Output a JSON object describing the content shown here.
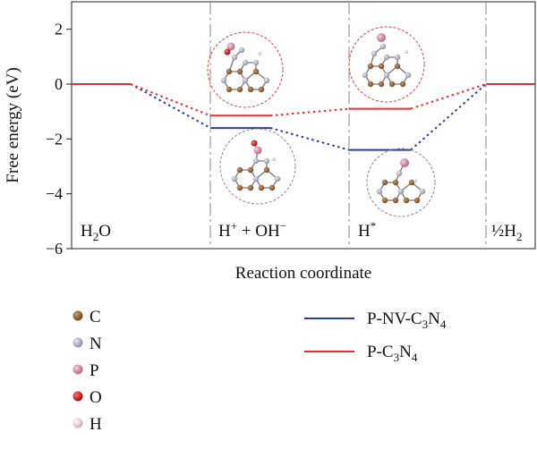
{
  "chart_data": {
    "type": "line",
    "title": "",
    "xlabel": "Reaction coordinate",
    "ylabel": "Free energy (eV)",
    "ylim": [
      -6,
      3
    ],
    "yticks": [
      2,
      0,
      -2,
      -4,
      -6
    ],
    "grid": false,
    "stages": [
      "H2O",
      "H+ + OH−",
      "H*",
      "½H2"
    ],
    "stage_labels": [
      {
        "main": "H",
        "sub": "2",
        "tail": "O"
      },
      {
        "main": "H",
        "sup": "+",
        "tail": " + OH",
        "sup2": "−"
      },
      {
        "main": "H",
        "sup": "*"
      },
      {
        "main": "½H",
        "sub": "2"
      }
    ],
    "series": [
      {
        "name": "P-NV-C3N4",
        "color": "#2b3a9e",
        "values": [
          0,
          -1.6,
          -2.4,
          0
        ]
      },
      {
        "name": "P-C3N4",
        "color": "#e23030",
        "values": [
          0,
          -1.15,
          -0.9,
          0
        ]
      }
    ],
    "legend": {
      "placement": "bottom-right",
      "entries": [
        {
          "base": "P-NV-C",
          "s1": "3",
          "mid": "N",
          "s2": "4",
          "color": "#2b3a9e"
        },
        {
          "base": "P-C",
          "s1": "3",
          "mid": "N",
          "s2": "4",
          "color": "#e23030"
        }
      ]
    },
    "atom_legend": [
      {
        "label": "C",
        "color": "#8a5a2b"
      },
      {
        "label": "N",
        "color": "#8f8f8f"
      },
      {
        "label": "P",
        "color": "#d98aa0"
      },
      {
        "label": "O",
        "color": "#d01010"
      },
      {
        "label": "H",
        "color": "#e8d4dc"
      }
    ]
  }
}
